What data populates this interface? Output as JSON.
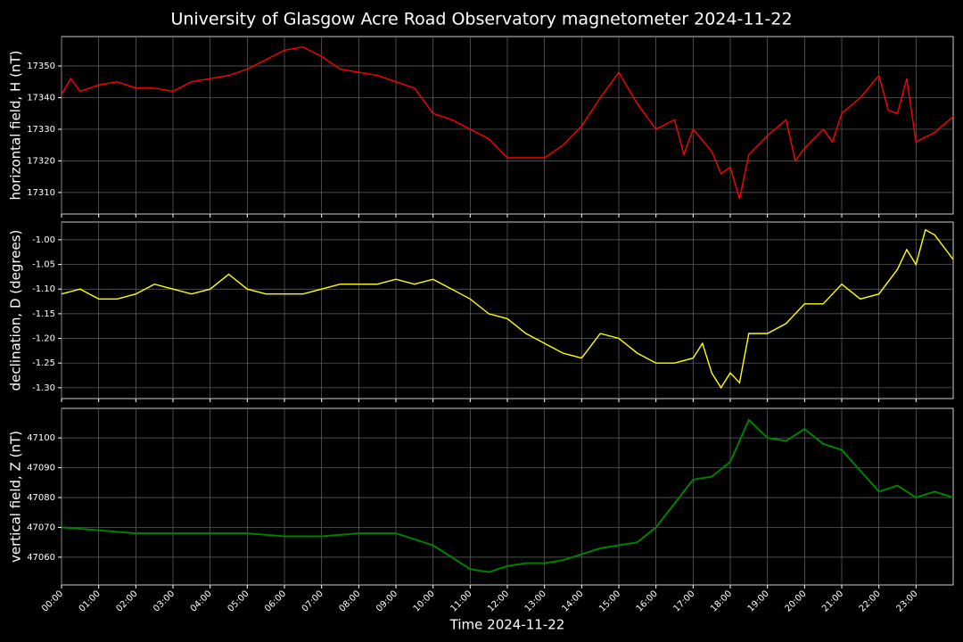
{
  "title": "University of Glasgow Acre Road Observatory magnetometer 2024-11-22",
  "x_axis": {
    "label": "Time 2024-11-22",
    "xlim": [
      0,
      24
    ],
    "xticks": [
      {
        "value": 0,
        "label": "00:00"
      },
      {
        "value": 1,
        "label": "01:00"
      },
      {
        "value": 2,
        "label": "02:00"
      },
      {
        "value": 3,
        "label": "03:00"
      },
      {
        "value": 4,
        "label": "04:00"
      },
      {
        "value": 5,
        "label": "05:00"
      },
      {
        "value": 6,
        "label": "06:00"
      },
      {
        "value": 7,
        "label": "07:00"
      },
      {
        "value": 8,
        "label": "08:00"
      },
      {
        "value": 9,
        "label": "09:00"
      },
      {
        "value": 10,
        "label": "10:00"
      },
      {
        "value": 11,
        "label": "11:00"
      },
      {
        "value": 12,
        "label": "12:00"
      },
      {
        "value": 13,
        "label": "13:00"
      },
      {
        "value": 14,
        "label": "14:00"
      },
      {
        "value": 15,
        "label": "15:00"
      },
      {
        "value": 16,
        "label": "16:00"
      },
      {
        "value": 17,
        "label": "17:00"
      },
      {
        "value": 18,
        "label": "18:00"
      },
      {
        "value": 19,
        "label": "19:00"
      },
      {
        "value": 20,
        "label": "20:00"
      },
      {
        "value": 21,
        "label": "21:00"
      },
      {
        "value": 22,
        "label": "22:00"
      },
      {
        "value": 23,
        "label": "23:00"
      }
    ]
  },
  "chart_data": [
    {
      "type": "line",
      "ylabel": "horizontal field, H (nT)",
      "grid": true,
      "ylim": [
        17303.2,
        17359.3
      ],
      "yticks": [
        17310,
        17320,
        17330,
        17340,
        17350
      ],
      "series": [
        {
          "color": "#ff0000",
          "x": [
            0,
            0.25,
            0.5,
            1,
            1.5,
            2,
            2.5,
            3,
            3.5,
            4,
            4.5,
            5,
            5.5,
            6,
            6.5,
            7,
            7.5,
            8,
            8.5,
            9,
            9.5,
            10,
            10.5,
            11,
            11.5,
            12,
            12.5,
            13,
            13.5,
            14,
            14.5,
            15,
            15.5,
            16,
            16.5,
            16.75,
            17,
            17.5,
            17.75,
            18,
            18.25,
            18.5,
            19,
            19.5,
            19.75,
            20,
            20.5,
            20.75,
            21,
            21.5,
            22,
            22.25,
            22.5,
            22.75,
            23,
            23.5,
            24
          ],
          "values": [
            17341,
            17346,
            17342,
            17344,
            17345,
            17343,
            17343,
            17342,
            17345,
            17346,
            17347,
            17349,
            17352,
            17355,
            17356,
            17353,
            17349,
            17348,
            17347,
            17345,
            17343,
            17335,
            17333,
            17330,
            17327,
            17321,
            17321,
            17321,
            17325,
            17331,
            17340,
            17348,
            17338,
            17330,
            17333,
            17322,
            17330,
            17323,
            17316,
            17318,
            17308,
            17322,
            17328,
            17333,
            17320,
            17324,
            17330,
            17326,
            17335,
            17340,
            17347,
            17336,
            17335,
            17346,
            17326,
            17329,
            17334
          ]
        }
      ]
    },
    {
      "type": "line",
      "ylabel": "declination, D (degrees)",
      "grid": true,
      "ylim": [
        -1.322,
        -0.964
      ],
      "yticks": [
        {
          "value": -1.3,
          "label": "-1.30"
        },
        {
          "value": -1.25,
          "label": "-1.25"
        },
        {
          "value": -1.2,
          "label": "-1.20"
        },
        {
          "value": -1.15,
          "label": "-1.15"
        },
        {
          "value": -1.1,
          "label": "-1.10"
        },
        {
          "value": -1.05,
          "label": "-1.05"
        },
        {
          "value": -1,
          "label": "-1.00"
        }
      ],
      "series": [
        {
          "color": "#ffff00",
          "x": [
            0,
            0.5,
            1,
            1.5,
            2,
            2.5,
            3,
            3.5,
            4,
            4.5,
            5,
            5.5,
            6,
            6.5,
            7,
            7.5,
            8,
            8.5,
            9,
            9.5,
            10,
            10.5,
            11,
            11.5,
            12,
            12.5,
            13,
            13.5,
            14,
            14.5,
            15,
            15.5,
            16,
            16.5,
            17,
            17.25,
            17.5,
            17.75,
            18,
            18.25,
            18.5,
            19,
            19.5,
            20,
            20.5,
            21,
            21.5,
            22,
            22.5,
            22.75,
            23,
            23.25,
            23.5,
            24
          ],
          "values": [
            -1.11,
            -1.1,
            -1.12,
            -1.12,
            -1.11,
            -1.09,
            -1.1,
            -1.11,
            -1.1,
            -1.07,
            -1.1,
            -1.11,
            -1.11,
            -1.11,
            -1.1,
            -1.09,
            -1.09,
            -1.09,
            -1.08,
            -1.09,
            -1.08,
            -1.1,
            -1.12,
            -1.15,
            -1.16,
            -1.19,
            -1.21,
            -1.23,
            -1.24,
            -1.19,
            -1.2,
            -1.23,
            -1.25,
            -1.25,
            -1.24,
            -1.21,
            -1.27,
            -1.3,
            -1.27,
            -1.29,
            -1.19,
            -1.19,
            -1.17,
            -1.13,
            -1.13,
            -1.09,
            -1.12,
            -1.11,
            -1.06,
            -1.02,
            -1.05,
            -0.98,
            -0.99,
            -1.04
          ]
        }
      ]
    },
    {
      "type": "line",
      "ylabel": "vertical field, Z (nT)",
      "grid": true,
      "ylim": [
        47050.7,
        47109.9
      ],
      "yticks": [
        47060,
        47070,
        47080,
        47090,
        47100
      ],
      "series": [
        {
          "color": "#008000",
          "x": [
            0,
            1,
            2,
            3,
            4,
            5,
            6,
            7,
            8,
            9,
            9.5,
            10,
            10.5,
            11,
            11.5,
            12,
            12.5,
            13,
            13.5,
            14,
            14.5,
            15,
            15.5,
            16,
            16.5,
            17,
            17.5,
            18,
            18.5,
            19,
            19.5,
            20,
            20.5,
            21,
            21.5,
            22,
            22.5,
            23,
            23.5,
            24
          ],
          "values": [
            47070,
            47069,
            47068,
            47068,
            47068,
            47068,
            47067,
            47067,
            47068,
            47068,
            47066,
            47064,
            47060,
            47056,
            47055,
            47057,
            47058,
            47058,
            47059,
            47061,
            47063,
            47064,
            47065,
            47070,
            47078,
            47086,
            47087,
            47092,
            47106,
            47100,
            47099,
            47103,
            47098,
            47096,
            47089,
            47082,
            47084,
            47080,
            47082,
            47080
          ]
        }
      ]
    }
  ]
}
